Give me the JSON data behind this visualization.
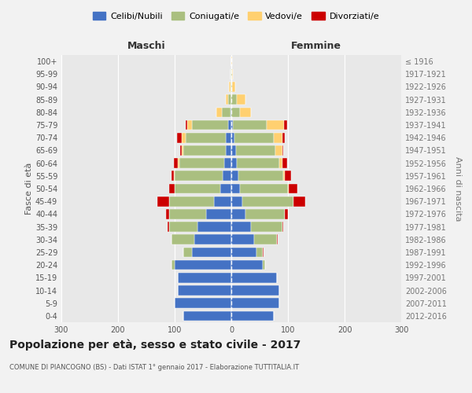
{
  "age_groups": [
    "0-4",
    "5-9",
    "10-14",
    "15-19",
    "20-24",
    "25-29",
    "30-34",
    "35-39",
    "40-44",
    "45-49",
    "50-54",
    "55-59",
    "60-64",
    "65-69",
    "70-74",
    "75-79",
    "80-84",
    "85-89",
    "90-94",
    "95-99",
    "100+"
  ],
  "birth_years": [
    "2012-2016",
    "2007-2011",
    "2002-2006",
    "1997-2001",
    "1992-1996",
    "1987-1991",
    "1982-1986",
    "1977-1981",
    "1972-1976",
    "1967-1971",
    "1962-1966",
    "1957-1961",
    "1952-1956",
    "1947-1951",
    "1942-1946",
    "1937-1941",
    "1932-1936",
    "1927-1931",
    "1922-1926",
    "1917-1921",
    "≤ 1916"
  ],
  "maschi": {
    "celibi": [
      85,
      100,
      95,
      95,
      100,
      70,
      65,
      60,
      45,
      30,
      20,
      15,
      12,
      10,
      10,
      5,
      2,
      0,
      0,
      0,
      0
    ],
    "coniugati": [
      0,
      0,
      0,
      0,
      5,
      15,
      40,
      50,
      65,
      80,
      80,
      85,
      80,
      75,
      70,
      65,
      15,
      5,
      2,
      1,
      0
    ],
    "vedovi": [
      0,
      0,
      0,
      0,
      0,
      0,
      0,
      0,
      0,
      0,
      0,
      1,
      2,
      3,
      8,
      8,
      10,
      5,
      2,
      0,
      0
    ],
    "divorziati": [
      0,
      0,
      0,
      0,
      0,
      0,
      1,
      3,
      5,
      20,
      10,
      5,
      8,
      2,
      8,
      3,
      0,
      0,
      0,
      0,
      0
    ]
  },
  "femmine": {
    "nubili": [
      75,
      85,
      85,
      80,
      55,
      45,
      40,
      35,
      25,
      20,
      15,
      12,
      10,
      8,
      5,
      3,
      0,
      0,
      0,
      0,
      0
    ],
    "coniugate": [
      0,
      0,
      0,
      0,
      5,
      10,
      40,
      55,
      70,
      90,
      85,
      80,
      75,
      70,
      70,
      60,
      15,
      10,
      2,
      1,
      0
    ],
    "vedove": [
      0,
      0,
      0,
      0,
      0,
      0,
      0,
      0,
      0,
      0,
      2,
      3,
      5,
      12,
      15,
      30,
      20,
      15,
      5,
      2,
      1
    ],
    "divorziate": [
      0,
      0,
      0,
      0,
      0,
      2,
      2,
      2,
      5,
      20,
      15,
      10,
      8,
      2,
      5,
      5,
      0,
      0,
      0,
      0,
      0
    ]
  },
  "colors": {
    "celibi_nubili": "#4472C4",
    "coniugati": "#AABF80",
    "vedovi": "#FFD070",
    "divorziati": "#CC0000"
  },
  "title": "Popolazione per età, sesso e stato civile - 2017",
  "subtitle": "COMUNE DI PIANCOGNO (BS) - Dati ISTAT 1° gennaio 2017 - Elaborazione TUTTITALIA.IT",
  "ylabel_left": "Fasce di età",
  "ylabel_right": "Anni di nascita",
  "xlabel_left": "Maschi",
  "xlabel_right": "Femmine",
  "xlim": 300,
  "legend_labels": [
    "Celibi/Nubili",
    "Coniugati/e",
    "Vedovi/e",
    "Divorziati/e"
  ]
}
